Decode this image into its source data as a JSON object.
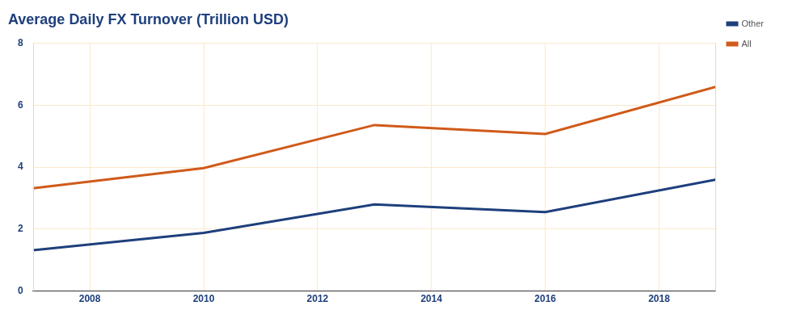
{
  "chart_data": {
    "type": "line",
    "title": "Average Daily FX Turnover (Trillion USD)",
    "x": [
      2007,
      2010,
      2013,
      2016,
      2019
    ],
    "series": [
      {
        "name": "Other",
        "color": "#1e3f7c",
        "values": [
          1.32,
          1.88,
          2.8,
          2.55,
          3.6
        ]
      },
      {
        "name": "All",
        "color": "#d05a1a",
        "values": [
          3.32,
          3.97,
          5.36,
          5.07,
          6.6
        ]
      }
    ],
    "xlim": [
      2007,
      2019
    ],
    "xticks": [
      2008,
      2010,
      2012,
      2014,
      2016,
      2018
    ],
    "ylim": [
      0,
      8
    ],
    "yticks": [
      0,
      2,
      4,
      6,
      8
    ],
    "grid": true,
    "legend": "top-right"
  }
}
